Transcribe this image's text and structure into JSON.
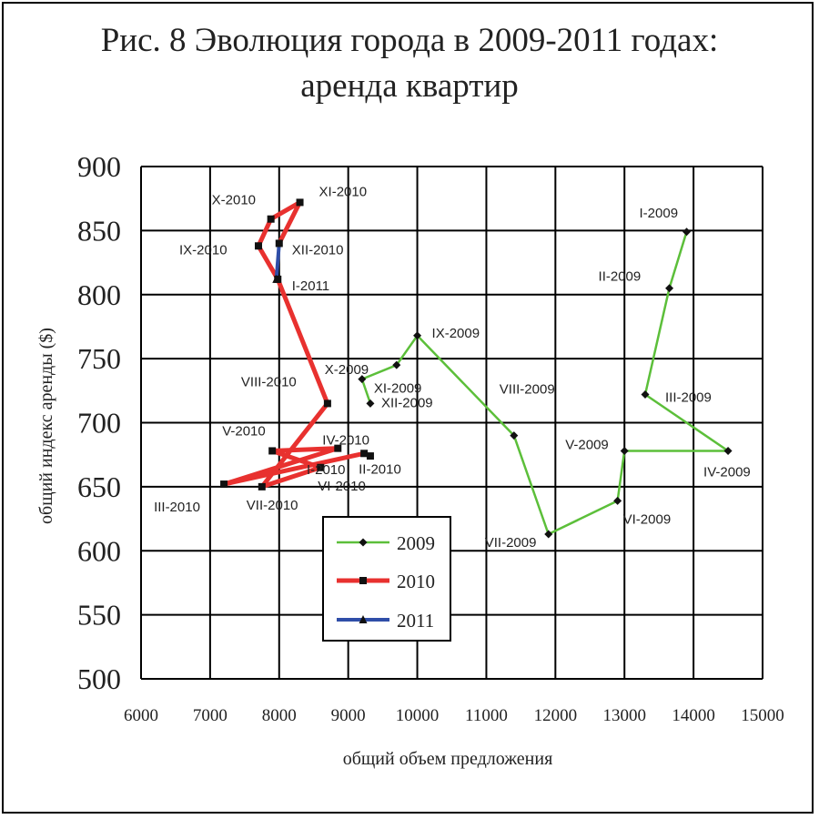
{
  "title_line1": "Рис. 8 Эволюция города в 2009-2011 годах:",
  "title_line2": "аренда квартир",
  "chart_data": {
    "type": "line",
    "xlabel": "общий объем предложения",
    "ylabel": "общий индекс аренды ($)",
    "xlim": [
      6000,
      15000
    ],
    "ylim": [
      500,
      900
    ],
    "x_ticks": [
      6000,
      7000,
      8000,
      9000,
      10000,
      11000,
      12000,
      13000,
      14000,
      15000
    ],
    "y_ticks": [
      500,
      550,
      600,
      650,
      700,
      750,
      800,
      850,
      900
    ],
    "grid": true,
    "legend_position": "bottom-center",
    "series": [
      {
        "name": "2009",
        "color": "#5cbf3a",
        "marker": "diamond",
        "points": [
          {
            "label": "I-2009",
            "x": 13900,
            "y": 849
          },
          {
            "label": "II-2009",
            "x": 13650,
            "y": 805
          },
          {
            "label": "III-2009",
            "x": 13300,
            "y": 722
          },
          {
            "label": "IV-2009",
            "x": 14500,
            "y": 678
          },
          {
            "label": "V-2009",
            "x": 13000,
            "y": 678
          },
          {
            "label": "VI-2009",
            "x": 12900,
            "y": 639
          },
          {
            "label": "VII-2009",
            "x": 11900,
            "y": 613
          },
          {
            "label": "VIII-2009",
            "x": 11400,
            "y": 690
          },
          {
            "label": "IX-2009",
            "x": 10000,
            "y": 768
          },
          {
            "label": "X-2009",
            "x": 9700,
            "y": 745
          },
          {
            "label": "XI-2009",
            "x": 9200,
            "y": 734
          },
          {
            "label": "XII-2009",
            "x": 9320,
            "y": 715
          }
        ]
      },
      {
        "name": "2010",
        "color": "#e8312f",
        "marker": "square",
        "points": [
          {
            "label": "I-2010",
            "x": 9320,
            "y": 674
          },
          {
            "label": "II-2010",
            "x": 9230,
            "y": 676
          },
          {
            "label": "III-2010",
            "x": 7200,
            "y": 652
          },
          {
            "label": "IV-2010",
            "x": 8850,
            "y": 680
          },
          {
            "label": "V-2010",
            "x": 7900,
            "y": 678
          },
          {
            "label": "VI-2010",
            "x": 8600,
            "y": 665
          },
          {
            "label": "VII-2010",
            "x": 7750,
            "y": 650
          },
          {
            "label": "VIII-2010",
            "x": 8700,
            "y": 715
          },
          {
            "label": "",
            "x": 7980,
            "y": 812
          },
          {
            "label": "IX-2010",
            "x": 7700,
            "y": 838
          },
          {
            "label": "X-2010",
            "x": 7880,
            "y": 859
          },
          {
            "label": "XI-2010",
            "x": 8300,
            "y": 872
          },
          {
            "label": "XII-2010",
            "x": 8000,
            "y": 840
          }
        ]
      },
      {
        "name": "2011",
        "color": "#2f4ea8",
        "marker": "triangle",
        "points": [
          {
            "label": "XII-2010",
            "x": 8000,
            "y": 840
          },
          {
            "label": "I-2011",
            "x": 7960,
            "y": 812
          }
        ]
      }
    ]
  }
}
